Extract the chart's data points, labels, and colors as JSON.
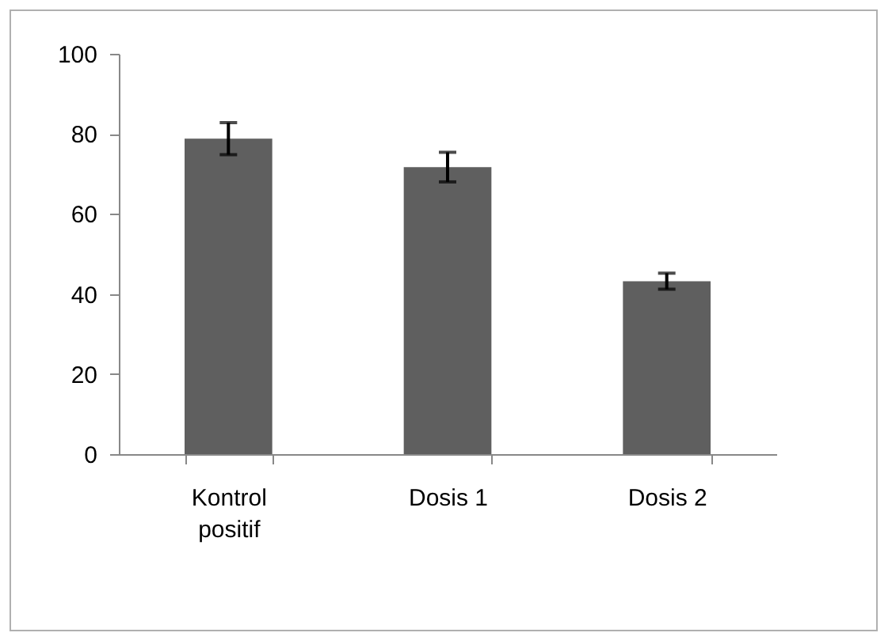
{
  "chart_data": {
    "type": "bar",
    "categories": [
      "Kontrol positif",
      "Dosis 1",
      "Dosis 2"
    ],
    "values": [
      78.8,
      71.7,
      43.2
    ],
    "errors": [
      4,
      3.7,
      2
    ],
    "color": "#5f5f5f",
    "ylim": [
      0,
      100
    ],
    "yticks": [
      0,
      20,
      40,
      60,
      80,
      100
    ],
    "grid": false
  }
}
